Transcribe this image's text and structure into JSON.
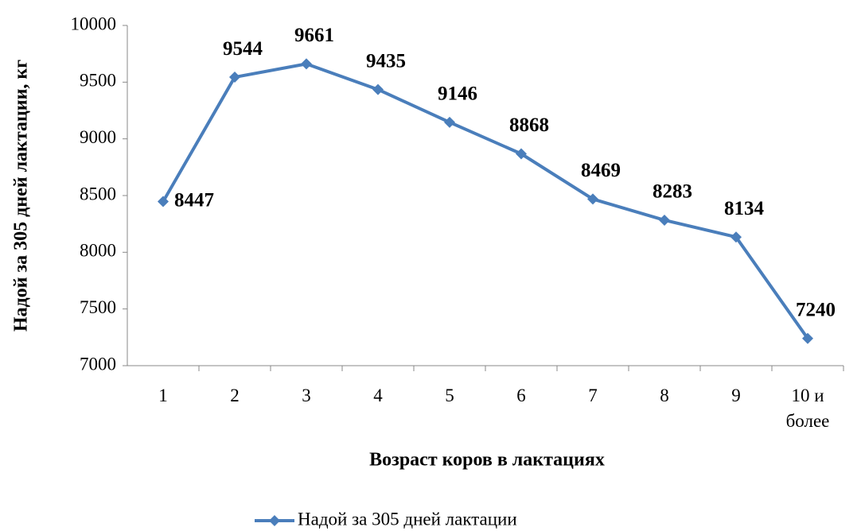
{
  "chart_data": {
    "type": "line",
    "y_label": "Надой за 305 дней лактации, кг",
    "x_label": "Возраст коров в лактациях",
    "categories": [
      "1",
      "2",
      "3",
      "4",
      "5",
      "6",
      "7",
      "8",
      "9",
      "10 и более"
    ],
    "series": [
      {
        "name": "Надой за 305 дней лактации",
        "color": "#4a7ebb",
        "values": [
          8447,
          9544,
          9661,
          9435,
          9146,
          8868,
          8469,
          8283,
          8134,
          7240
        ]
      }
    ],
    "ylim": [
      7000,
      10000
    ],
    "yticks": [
      7000,
      7500,
      8000,
      8500,
      9000,
      9500,
      10000
    ],
    "legend": "bottom"
  }
}
